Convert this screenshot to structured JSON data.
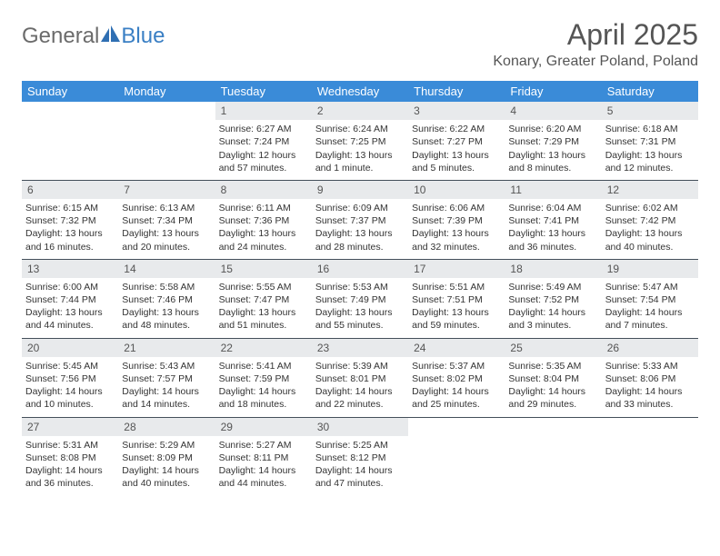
{
  "logo": {
    "word1": "General",
    "word2": "Blue"
  },
  "title": "April 2025",
  "location": "Konary, Greater Poland, Poland",
  "header_bg": "#3a8bd8",
  "daynum_bg": "#e8eaec",
  "dow": [
    "Sunday",
    "Monday",
    "Tuesday",
    "Wednesday",
    "Thursday",
    "Friday",
    "Saturday"
  ],
  "weeks": [
    [
      {
        "n": "",
        "empty": true
      },
      {
        "n": "",
        "empty": true
      },
      {
        "n": "1",
        "sr": "Sunrise: 6:27 AM",
        "ss": "Sunset: 7:24 PM",
        "dl": "Daylight: 12 hours and 57 minutes."
      },
      {
        "n": "2",
        "sr": "Sunrise: 6:24 AM",
        "ss": "Sunset: 7:25 PM",
        "dl": "Daylight: 13 hours and 1 minute."
      },
      {
        "n": "3",
        "sr": "Sunrise: 6:22 AM",
        "ss": "Sunset: 7:27 PM",
        "dl": "Daylight: 13 hours and 5 minutes."
      },
      {
        "n": "4",
        "sr": "Sunrise: 6:20 AM",
        "ss": "Sunset: 7:29 PM",
        "dl": "Daylight: 13 hours and 8 minutes."
      },
      {
        "n": "5",
        "sr": "Sunrise: 6:18 AM",
        "ss": "Sunset: 7:31 PM",
        "dl": "Daylight: 13 hours and 12 minutes."
      }
    ],
    [
      {
        "n": "6",
        "sr": "Sunrise: 6:15 AM",
        "ss": "Sunset: 7:32 PM",
        "dl": "Daylight: 13 hours and 16 minutes."
      },
      {
        "n": "7",
        "sr": "Sunrise: 6:13 AM",
        "ss": "Sunset: 7:34 PM",
        "dl": "Daylight: 13 hours and 20 minutes."
      },
      {
        "n": "8",
        "sr": "Sunrise: 6:11 AM",
        "ss": "Sunset: 7:36 PM",
        "dl": "Daylight: 13 hours and 24 minutes."
      },
      {
        "n": "9",
        "sr": "Sunrise: 6:09 AM",
        "ss": "Sunset: 7:37 PM",
        "dl": "Daylight: 13 hours and 28 minutes."
      },
      {
        "n": "10",
        "sr": "Sunrise: 6:06 AM",
        "ss": "Sunset: 7:39 PM",
        "dl": "Daylight: 13 hours and 32 minutes."
      },
      {
        "n": "11",
        "sr": "Sunrise: 6:04 AM",
        "ss": "Sunset: 7:41 PM",
        "dl": "Daylight: 13 hours and 36 minutes."
      },
      {
        "n": "12",
        "sr": "Sunrise: 6:02 AM",
        "ss": "Sunset: 7:42 PM",
        "dl": "Daylight: 13 hours and 40 minutes."
      }
    ],
    [
      {
        "n": "13",
        "sr": "Sunrise: 6:00 AM",
        "ss": "Sunset: 7:44 PM",
        "dl": "Daylight: 13 hours and 44 minutes."
      },
      {
        "n": "14",
        "sr": "Sunrise: 5:58 AM",
        "ss": "Sunset: 7:46 PM",
        "dl": "Daylight: 13 hours and 48 minutes."
      },
      {
        "n": "15",
        "sr": "Sunrise: 5:55 AM",
        "ss": "Sunset: 7:47 PM",
        "dl": "Daylight: 13 hours and 51 minutes."
      },
      {
        "n": "16",
        "sr": "Sunrise: 5:53 AM",
        "ss": "Sunset: 7:49 PM",
        "dl": "Daylight: 13 hours and 55 minutes."
      },
      {
        "n": "17",
        "sr": "Sunrise: 5:51 AM",
        "ss": "Sunset: 7:51 PM",
        "dl": "Daylight: 13 hours and 59 minutes."
      },
      {
        "n": "18",
        "sr": "Sunrise: 5:49 AM",
        "ss": "Sunset: 7:52 PM",
        "dl": "Daylight: 14 hours and 3 minutes."
      },
      {
        "n": "19",
        "sr": "Sunrise: 5:47 AM",
        "ss": "Sunset: 7:54 PM",
        "dl": "Daylight: 14 hours and 7 minutes."
      }
    ],
    [
      {
        "n": "20",
        "sr": "Sunrise: 5:45 AM",
        "ss": "Sunset: 7:56 PM",
        "dl": "Daylight: 14 hours and 10 minutes."
      },
      {
        "n": "21",
        "sr": "Sunrise: 5:43 AM",
        "ss": "Sunset: 7:57 PM",
        "dl": "Daylight: 14 hours and 14 minutes."
      },
      {
        "n": "22",
        "sr": "Sunrise: 5:41 AM",
        "ss": "Sunset: 7:59 PM",
        "dl": "Daylight: 14 hours and 18 minutes."
      },
      {
        "n": "23",
        "sr": "Sunrise: 5:39 AM",
        "ss": "Sunset: 8:01 PM",
        "dl": "Daylight: 14 hours and 22 minutes."
      },
      {
        "n": "24",
        "sr": "Sunrise: 5:37 AM",
        "ss": "Sunset: 8:02 PM",
        "dl": "Daylight: 14 hours and 25 minutes."
      },
      {
        "n": "25",
        "sr": "Sunrise: 5:35 AM",
        "ss": "Sunset: 8:04 PM",
        "dl": "Daylight: 14 hours and 29 minutes."
      },
      {
        "n": "26",
        "sr": "Sunrise: 5:33 AM",
        "ss": "Sunset: 8:06 PM",
        "dl": "Daylight: 14 hours and 33 minutes."
      }
    ],
    [
      {
        "n": "27",
        "sr": "Sunrise: 5:31 AM",
        "ss": "Sunset: 8:08 PM",
        "dl": "Daylight: 14 hours and 36 minutes."
      },
      {
        "n": "28",
        "sr": "Sunrise: 5:29 AM",
        "ss": "Sunset: 8:09 PM",
        "dl": "Daylight: 14 hours and 40 minutes."
      },
      {
        "n": "29",
        "sr": "Sunrise: 5:27 AM",
        "ss": "Sunset: 8:11 PM",
        "dl": "Daylight: 14 hours and 44 minutes."
      },
      {
        "n": "30",
        "sr": "Sunrise: 5:25 AM",
        "ss": "Sunset: 8:12 PM",
        "dl": "Daylight: 14 hours and 47 minutes."
      },
      {
        "n": "",
        "empty": true
      },
      {
        "n": "",
        "empty": true
      },
      {
        "n": "",
        "empty": true
      }
    ]
  ]
}
